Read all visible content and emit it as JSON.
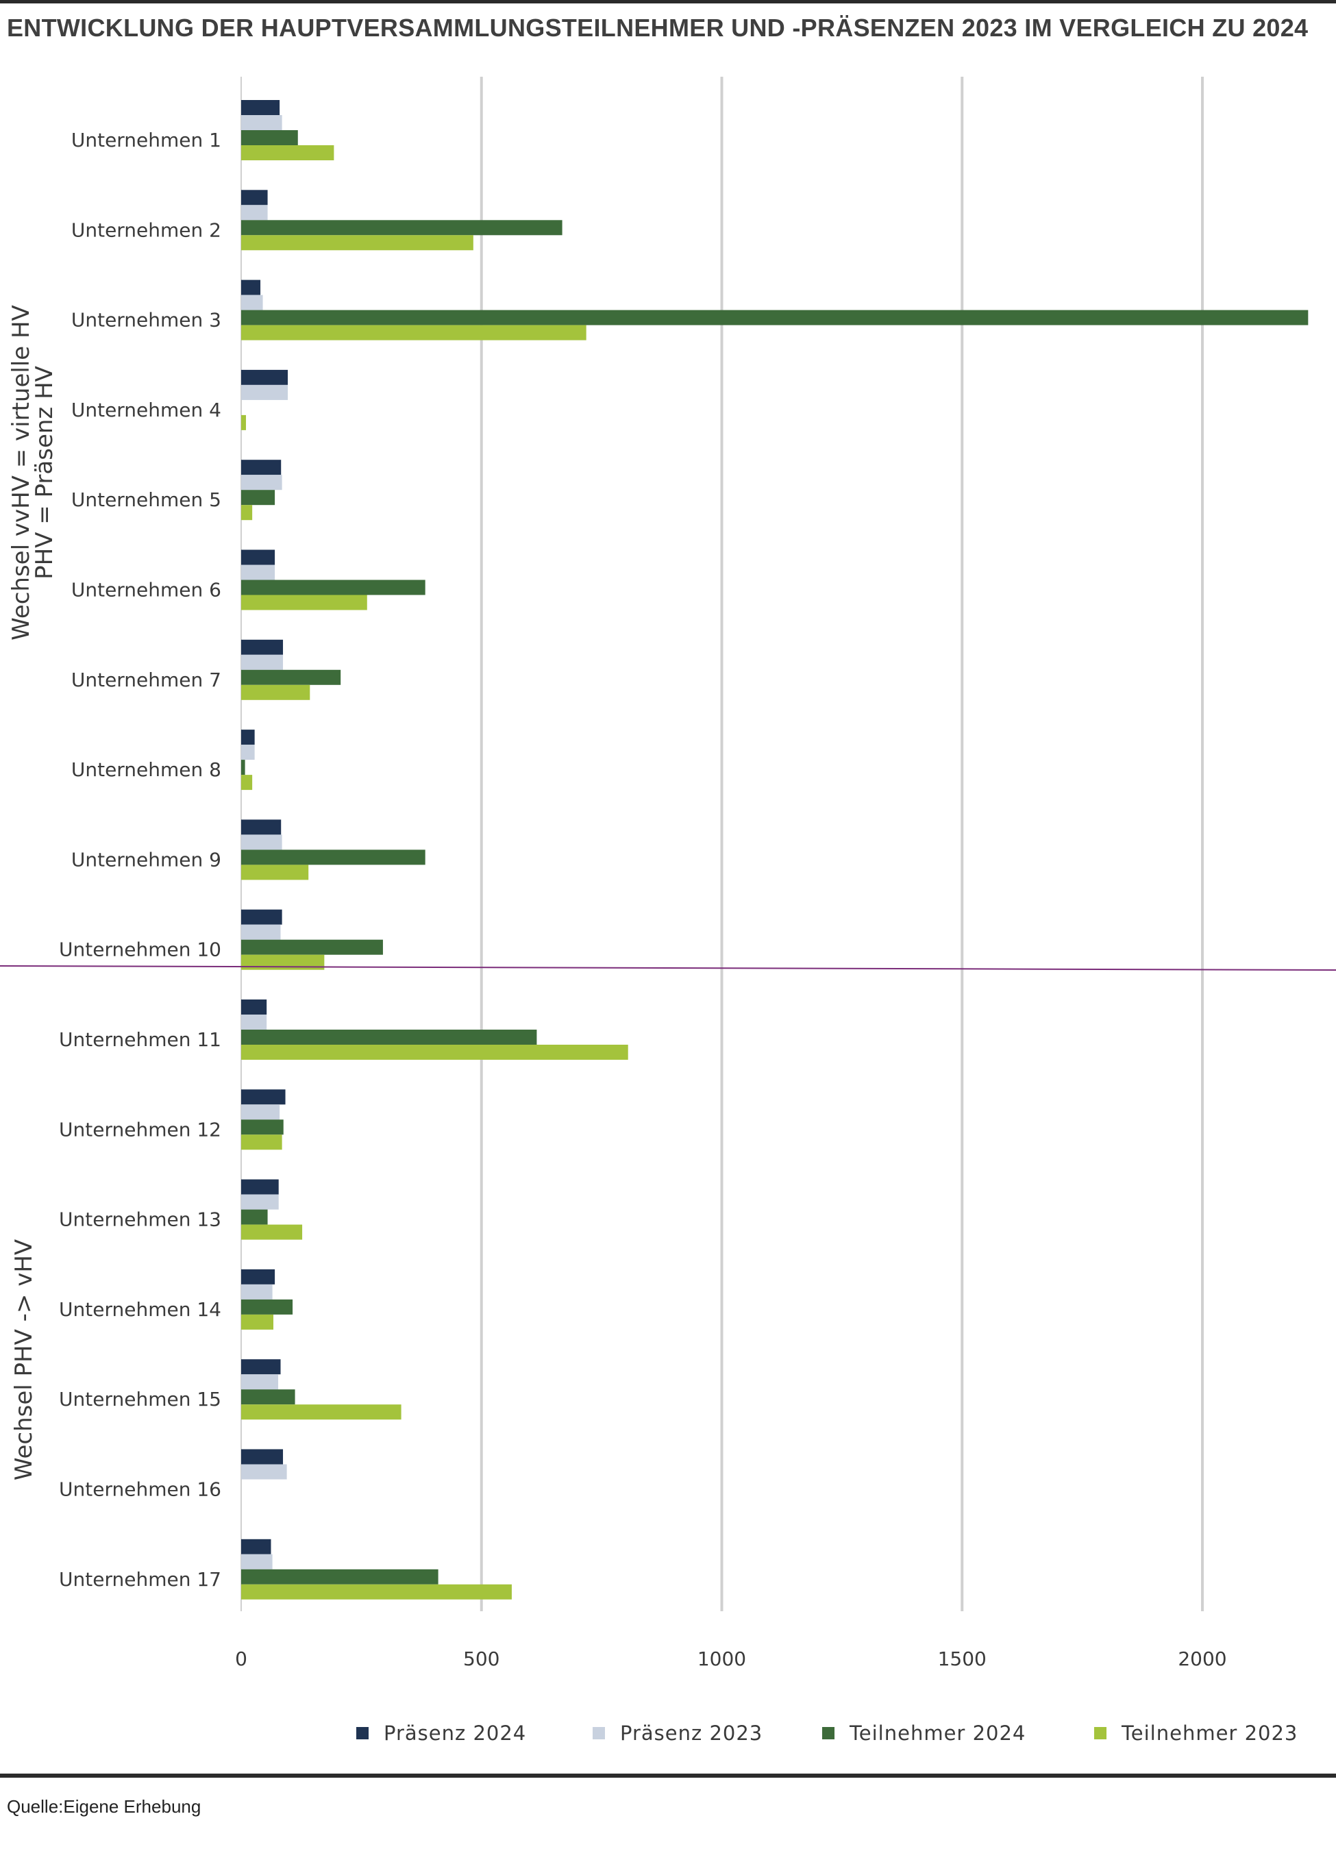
{
  "title": "ENTWICKLUNG DER HAUPTVERSAMMLUNGSTEILNEHMER UND -PRÄSENZEN 2023 IM VERGLEICH ZU 2024",
  "source": "Quelle:Eigene Erhebung",
  "colors": {
    "praesenz_2024": "#1f3352",
    "praesenz_2023": "#c8d1df",
    "teilnehmer_2024": "#3d6b3a",
    "teilnehmer_2023": "#a4c33c",
    "grid": "#d0d0d0",
    "separator": "#7b2d7a"
  },
  "chart_data": {
    "type": "bar",
    "orientation": "horizontal",
    "title": "ENTWICKLUNG DER HAUPTVERSAMMLUNGSTEILNEHMER UND -PRÄSENZEN 2023 IM VERGLEICH ZU 2024",
    "categories": [
      "Unternehmen 1",
      "Unternehmen 2",
      "Unternehmen 3",
      "Unternehmen 4",
      "Unternehmen 5",
      "Unternehmen 6",
      "Unternehmen 7",
      "Unternehmen 8",
      "Unternehmen 9",
      "Unternehmen 10",
      "Unternehmen 11",
      "Unternehmen 12",
      "Unternehmen 13",
      "Unternehmen 14",
      "Unternehmen 15",
      "Unternehmen 16",
      "Unternehmen 17"
    ],
    "groups": [
      {
        "label": "Wechsel vvHV = virtuelle HV\nPHV = Präsenz HV",
        "lines": [
          "Wechsel vvHV = virtuelle HV",
          "PHV = Präsenz HV"
        ],
        "from": 0,
        "to": 9
      },
      {
        "label": "Wechsel PHV -> vHV",
        "lines": [
          "Wechsel PHV -> vHV"
        ],
        "from": 10,
        "to": 16
      }
    ],
    "series": [
      {
        "name": "Präsenz 2024",
        "values": [
          80,
          55,
          40,
          97,
          83,
          70,
          87,
          28,
          83,
          85,
          53,
          92,
          78,
          70,
          82,
          87,
          62
        ]
      },
      {
        "name": "Präsenz 2023",
        "values": [
          85,
          55,
          45,
          97,
          85,
          70,
          87,
          28,
          85,
          82,
          53,
          80,
          78,
          65,
          77,
          95,
          65
        ]
      },
      {
        "name": "Teilnehmer 2024",
        "values": [
          118,
          668,
          2220,
          0,
          70,
          383,
          207,
          8,
          383,
          295,
          615,
          88,
          55,
          107,
          112,
          0,
          410
        ]
      },
      {
        "name": "Teilnehmer 2023",
        "values": [
          193,
          483,
          718,
          10,
          23,
          262,
          143,
          23,
          140,
          173,
          805,
          85,
          127,
          67,
          333,
          0,
          563
        ]
      }
    ],
    "xticks": [
      0,
      500,
      1000,
      1500,
      2000
    ],
    "xlim": [
      0,
      2230
    ],
    "grid": true,
    "legend_position": "bottom"
  }
}
